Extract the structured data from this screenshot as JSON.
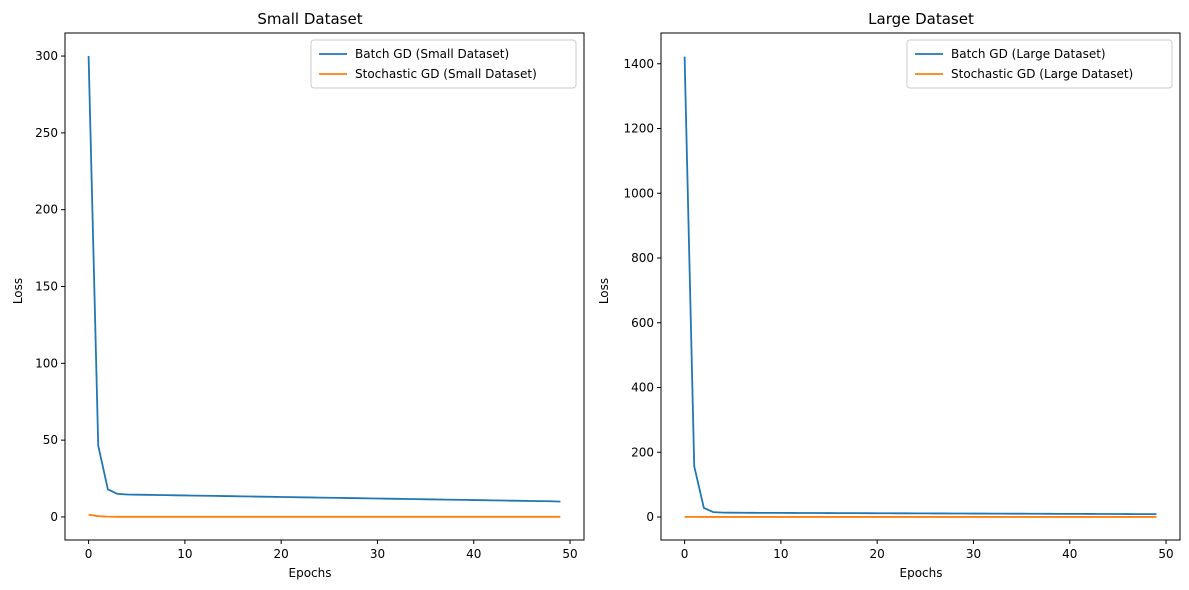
{
  "colors": {
    "series0": "#1f77b4",
    "series1": "#ff7f0e",
    "frame": "#000000",
    "legend_border": "#cccccc"
  },
  "chart_data": [
    {
      "type": "line",
      "title": "Small Dataset",
      "xlabel": "Epochs",
      "ylabel": "Loss",
      "xlim": [
        -2.45,
        51.45
      ],
      "ylim": [
        -15,
        315
      ],
      "xticks": [
        0,
        10,
        20,
        30,
        40,
        50
      ],
      "yticks": [
        0,
        50,
        100,
        150,
        200,
        250,
        300
      ],
      "legend": "top-right",
      "grid": false,
      "x": [
        0,
        1,
        2,
        3,
        4,
        5,
        6,
        7,
        8,
        9,
        10,
        11,
        12,
        13,
        14,
        15,
        16,
        17,
        18,
        19,
        20,
        21,
        22,
        23,
        24,
        25,
        26,
        27,
        28,
        29,
        30,
        31,
        32,
        33,
        34,
        35,
        36,
        37,
        38,
        39,
        40,
        41,
        42,
        43,
        44,
        45,
        46,
        47,
        48,
        49
      ],
      "series": [
        {
          "name": "Batch GD (Small Dataset)",
          "values": [
            300.0,
            46.5,
            18.0,
            15.0,
            14.6,
            14.5,
            14.4,
            14.3,
            14.2,
            14.1,
            14.0,
            13.9,
            13.8,
            13.7,
            13.6,
            13.5,
            13.4,
            13.3,
            13.2,
            13.1,
            13.0,
            12.9,
            12.8,
            12.7,
            12.6,
            12.5,
            12.4,
            12.3,
            12.2,
            12.1,
            12.0,
            11.9,
            11.8,
            11.7,
            11.6,
            11.5,
            11.4,
            11.3,
            11.2,
            11.1,
            11.0,
            10.9,
            10.8,
            10.7,
            10.6,
            10.5,
            10.4,
            10.3,
            10.2,
            10.0
          ]
        },
        {
          "name": "Stochastic GD (Small Dataset)",
          "values": [
            1.5,
            0.5,
            0.2,
            0.1,
            0.1,
            0.1,
            0.1,
            0.1,
            0.1,
            0.1,
            0.1,
            0.1,
            0.1,
            0.1,
            0.1,
            0.1,
            0.1,
            0.1,
            0.1,
            0.1,
            0.1,
            0.1,
            0.1,
            0.1,
            0.1,
            0.1,
            0.1,
            0.1,
            0.1,
            0.1,
            0.1,
            0.1,
            0.1,
            0.1,
            0.1,
            0.1,
            0.1,
            0.1,
            0.1,
            0.1,
            0.1,
            0.1,
            0.1,
            0.1,
            0.1,
            0.1,
            0.1,
            0.1,
            0.1,
            0.1
          ]
        }
      ]
    },
    {
      "type": "line",
      "title": "Large Dataset",
      "xlabel": "Epochs",
      "ylabel": "Loss",
      "xlim": [
        -2.45,
        51.45
      ],
      "ylim": [
        -71,
        1495
      ],
      "xticks": [
        0,
        10,
        20,
        30,
        40,
        50
      ],
      "yticks": [
        0,
        200,
        400,
        600,
        800,
        1000,
        1200,
        1400
      ],
      "legend": "top-right",
      "grid": false,
      "x": [
        0,
        1,
        2,
        3,
        4,
        5,
        6,
        7,
        8,
        9,
        10,
        11,
        12,
        13,
        14,
        15,
        16,
        17,
        18,
        19,
        20,
        21,
        22,
        23,
        24,
        25,
        26,
        27,
        28,
        29,
        30,
        31,
        32,
        33,
        34,
        35,
        36,
        37,
        38,
        39,
        40,
        41,
        42,
        43,
        44,
        45,
        46,
        47,
        48,
        49
      ],
      "series": [
        {
          "name": "Batch GD (Large Dataset)",
          "values": [
            1422,
            157,
            28,
            15,
            13.5,
            13.3,
            13.2,
            13.0,
            12.9,
            12.8,
            12.7,
            12.6,
            12.5,
            12.4,
            12.3,
            12.2,
            12.1,
            12.0,
            11.9,
            11.8,
            11.7,
            11.6,
            11.5,
            11.4,
            11.3,
            11.2,
            11.1,
            11.0,
            10.9,
            10.8,
            10.7,
            10.6,
            10.5,
            10.4,
            10.3,
            10.2,
            10.1,
            10.0,
            9.9,
            9.8,
            9.7,
            9.6,
            9.5,
            9.4,
            9.3,
            9.2,
            9.1,
            9.0,
            8.9,
            8.8
          ]
        },
        {
          "name": "Stochastic GD (Large Dataset)",
          "values": [
            0.5,
            0.4,
            0.3,
            0.3,
            0.3,
            0.3,
            0.3,
            0.3,
            0.3,
            0.3,
            0.3,
            0.3,
            0.3,
            0.3,
            0.3,
            0.3,
            0.3,
            0.3,
            0.3,
            0.3,
            0.3,
            0.3,
            0.3,
            0.3,
            0.3,
            0.3,
            0.3,
            0.3,
            0.3,
            0.3,
            0.3,
            0.3,
            0.3,
            0.3,
            0.3,
            0.3,
            0.3,
            0.3,
            0.3,
            0.3,
            0.3,
            0.3,
            0.3,
            0.3,
            0.3,
            0.3,
            0.3,
            0.3,
            0.3,
            0.3
          ]
        }
      ]
    }
  ]
}
